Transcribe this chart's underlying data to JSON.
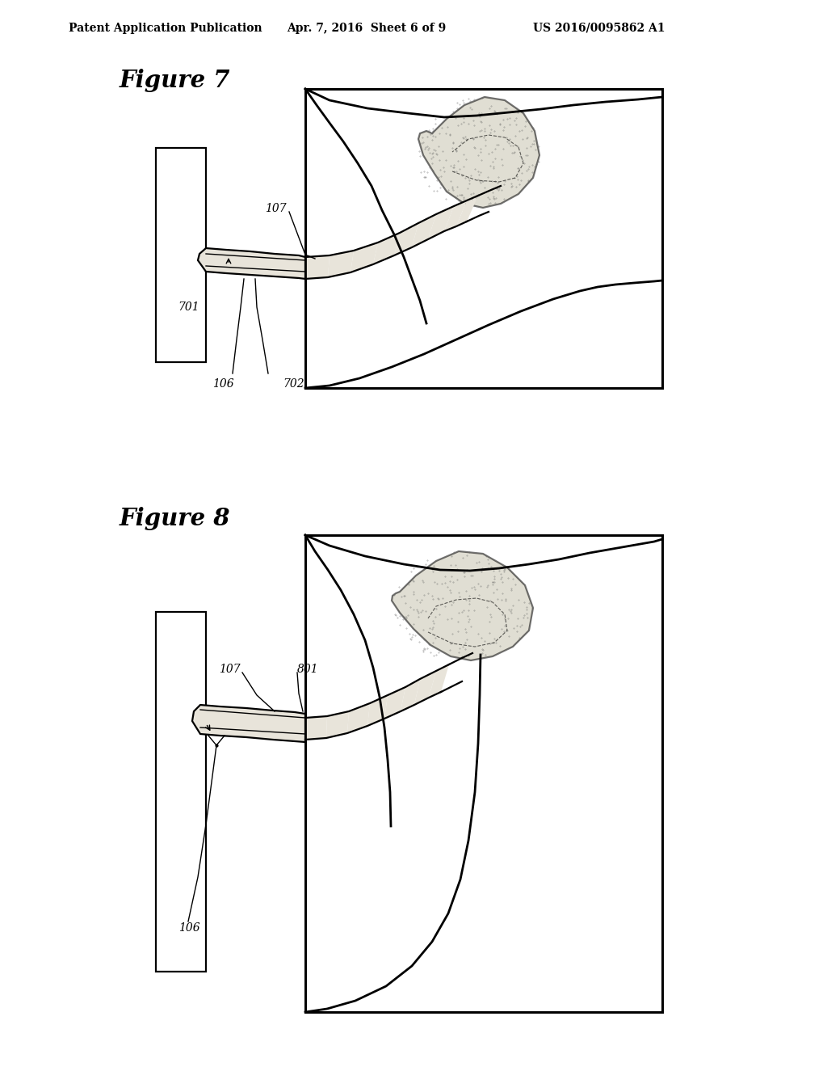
{
  "title_header": "Patent Application Publication",
  "date_header": "Apr. 7, 2016  Sheet 6 of 9",
  "patent_number": "US 2016/0095862 A1",
  "fig7_label": "Figure 7",
  "fig8_label": "Figure 8",
  "bg_color": "#ffffff",
  "line_color": "#000000",
  "lw_thin": 1.0,
  "lw_med": 1.6,
  "lw_thick": 2.0
}
